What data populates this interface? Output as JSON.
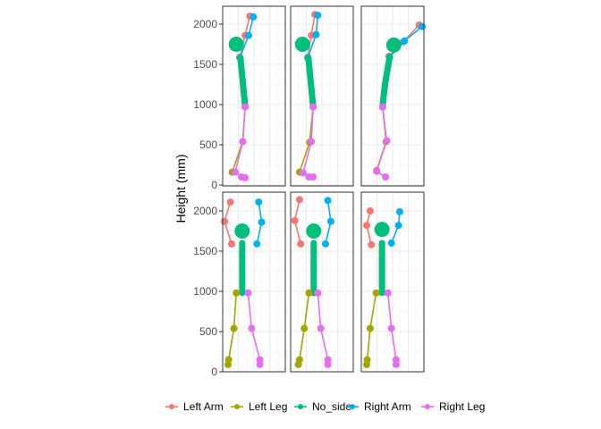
{
  "chart_data": {
    "type": "line",
    "title": "",
    "xlabel": "",
    "ylabel": "Height (mm)",
    "ylim": [
      0,
      2200
    ],
    "xlim": [
      0,
      1
    ],
    "y_ticks": [
      0,
      500,
      1000,
      1500,
      2000
    ],
    "y_tick_labels": [
      "0",
      "500",
      "1000",
      "1500",
      "2000"
    ],
    "grid": true,
    "legend_position": "bottom",
    "facet_grid": {
      "rows": 2,
      "cols": 3
    },
    "legend": [
      {
        "name": "Left Arm",
        "color": "#F8766D"
      },
      {
        "name": "Left Leg",
        "color": "#A3A500"
      },
      {
        "name": "No_side",
        "color": "#00BF7D"
      },
      {
        "name": "Right Arm",
        "color": "#00B0F6"
      },
      {
        "name": "Right Leg",
        "color": "#E76BF3"
      }
    ],
    "panels": [
      {
        "row": 0,
        "col": 0,
        "series": [
          {
            "name": "Left Arm",
            "x": [
              0.43,
              0.35,
              0.26
            ],
            "y": [
              2100,
              1860,
              1590
            ]
          },
          {
            "name": "Right Arm",
            "x": [
              0.49,
              0.41,
              0.26
            ],
            "y": [
              2090,
              1860,
              1580
            ]
          },
          {
            "name": "No_side",
            "x": [
              0.27,
              0.31,
              0.35
            ],
            "y": [
              1580,
              1280,
              980
            ]
          },
          {
            "name": "Left Leg",
            "x": [
              0.35,
              0.31,
              0.13
            ],
            "y": [
              970,
              540,
              160
            ]
          },
          {
            "name": "Right Leg",
            "x": [
              0.35,
              0.31,
              0.18,
              0.29,
              0.35
            ],
            "y": [
              970,
              540,
              160,
              100,
              90
            ]
          }
        ],
        "markers": [
          {
            "name": "No_side",
            "x": 0.2,
            "y": 1750,
            "size": "large"
          }
        ]
      },
      {
        "row": 0,
        "col": 1,
        "series": [
          {
            "name": "Left Arm",
            "x": [
              0.38,
              0.32,
              0.26
            ],
            "y": [
              2120,
              1860,
              1590
            ]
          },
          {
            "name": "Right Arm",
            "x": [
              0.43,
              0.4,
              0.26
            ],
            "y": [
              2110,
              1870,
              1580
            ]
          },
          {
            "name": "No_side",
            "x": [
              0.27,
              0.31,
              0.35
            ],
            "y": [
              1580,
              1280,
              980
            ]
          },
          {
            "name": "Left Leg",
            "x": [
              0.35,
              0.29,
              0.12
            ],
            "y": [
              970,
              530,
              160
            ]
          },
          {
            "name": "Right Leg",
            "x": [
              0.35,
              0.32,
              0.18,
              0.28,
              0.35
            ],
            "y": [
              970,
              540,
              150,
              100,
              100
            ]
          }
        ],
        "markers": [
          {
            "name": "No_side",
            "x": 0.17,
            "y": 1750,
            "size": "large"
          }
        ]
      },
      {
        "row": 0,
        "col": 2,
        "series": [
          {
            "name": "Left Arm",
            "x": [
              0.95,
              0.68,
              0.44
            ],
            "y": [
              1990,
              1780,
              1600
            ]
          },
          {
            "name": "Right Arm",
            "x": [
              1.0,
              0.7,
              0.45
            ],
            "y": [
              1970,
              1790,
              1590
            ]
          },
          {
            "name": "No_side",
            "x": [
              0.45,
              0.37,
              0.33
            ],
            "y": [
              1590,
              1250,
              980
            ]
          },
          {
            "name": "Left Leg",
            "x": [
              0.33,
              0.39,
              0.23
            ],
            "y": [
              970,
              540,
              180
            ]
          },
          {
            "name": "Right Leg",
            "x": [
              0.33,
              0.4,
              0.23,
              0.38
            ],
            "y": [
              970,
              550,
              170,
              100
            ]
          }
        ],
        "markers": [
          {
            "name": "No_side",
            "x": 0.52,
            "y": 1740,
            "size": "large"
          }
        ]
      },
      {
        "row": 1,
        "col": 0,
        "series": [
          {
            "name": "Left Arm",
            "x": [
              0.1,
              0.0,
              0.12
            ],
            "y": [
              2110,
              1870,
              1590
            ]
          },
          {
            "name": "Right Arm",
            "x": [
              0.58,
              0.63,
              0.55
            ],
            "y": [
              2110,
              1860,
              1590
            ]
          },
          {
            "name": "No_side",
            "x": [
              0.3,
              0.3,
              0.3
            ],
            "y": [
              1600,
              1300,
              980
            ]
          },
          {
            "name": "Left Leg",
            "x": [
              0.2,
              0.16,
              0.07,
              0.06
            ],
            "y": [
              980,
              540,
              150,
              90
            ]
          },
          {
            "name": "Right Leg",
            "x": [
              0.4,
              0.46,
              0.6,
              0.6
            ],
            "y": [
              980,
              540,
              150,
              90
            ]
          }
        ],
        "markers": [
          {
            "name": "No_side",
            "x": 0.3,
            "y": 1750,
            "size": "large"
          }
        ]
      },
      {
        "row": 1,
        "col": 1,
        "series": [
          {
            "name": "Left Arm",
            "x": [
              0.12,
              0.04,
              0.14
            ],
            "y": [
              2140,
              1880,
              1590
            ]
          },
          {
            "name": "Right Arm",
            "x": [
              0.6,
              0.65,
              0.56
            ],
            "y": [
              2130,
              1870,
              1590
            ]
          },
          {
            "name": "No_side",
            "x": [
              0.36,
              0.36,
              0.36
            ],
            "y": [
              1600,
              1300,
              980
            ]
          },
          {
            "name": "Left Leg",
            "x": [
              0.28,
              0.2,
              0.12,
              0.1
            ],
            "y": [
              980,
              540,
              150,
              90
            ]
          },
          {
            "name": "Right Leg",
            "x": [
              0.43,
              0.48,
              0.6,
              0.6
            ],
            "y": [
              980,
              540,
              150,
              90
            ]
          }
        ],
        "markers": [
          {
            "name": "No_side",
            "x": 0.36,
            "y": 1750,
            "size": "large"
          }
        ]
      },
      {
        "row": 1,
        "col": 2,
        "series": [
          {
            "name": "Left Arm",
            "x": [
              0.12,
              0.06,
              0.14
            ],
            "y": [
              2000,
              1820,
              1580
            ]
          },
          {
            "name": "Right Arm",
            "x": [
              0.62,
              0.6,
              0.48
            ],
            "y": [
              1990,
              1820,
              1600
            ]
          },
          {
            "name": "No_side",
            "x": [
              0.32,
              0.32,
              0.32
            ],
            "y": [
              1600,
              1300,
              980
            ]
          },
          {
            "name": "Left Leg",
            "x": [
              0.22,
              0.12,
              0.07,
              0.06
            ],
            "y": [
              980,
              540,
              150,
              90
            ]
          },
          {
            "name": "Right Leg",
            "x": [
              0.42,
              0.48,
              0.56,
              0.56
            ],
            "y": [
              980,
              540,
              150,
              90
            ]
          }
        ],
        "markers": [
          {
            "name": "No_side",
            "x": 0.32,
            "y": 1770,
            "size": "large"
          }
        ]
      }
    ]
  }
}
